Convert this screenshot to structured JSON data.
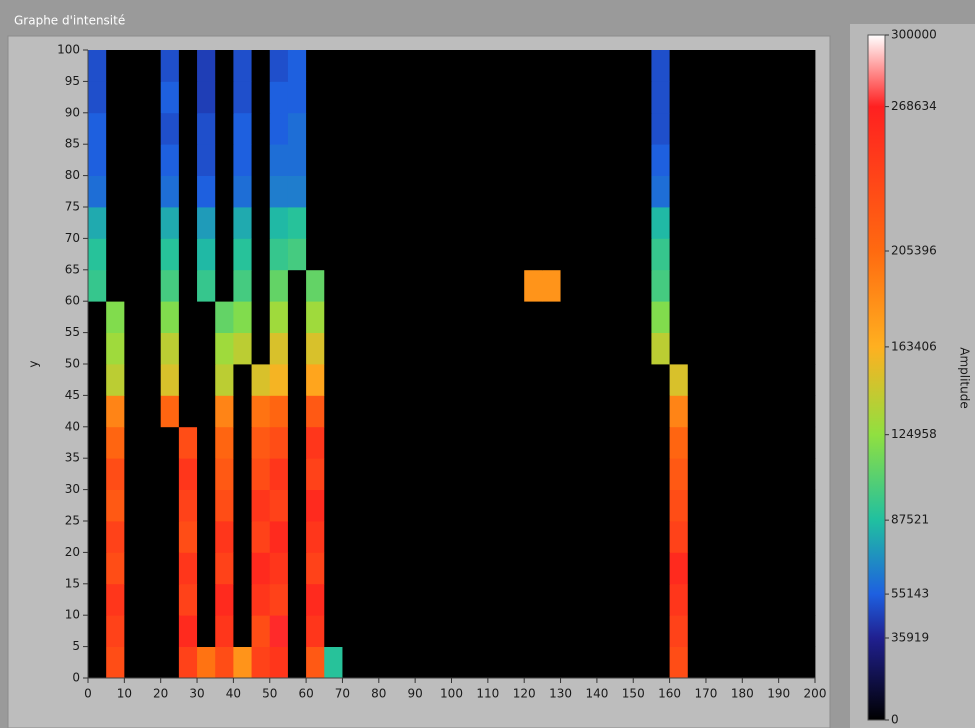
{
  "chart_data": {
    "type": "heatmap",
    "title": "Graphe d'intensité",
    "y_label": "y",
    "z_label": "Amplitude",
    "xlim": [
      0,
      200
    ],
    "ylim": [
      0,
      100
    ],
    "xticks": [
      0,
      10,
      20,
      30,
      40,
      50,
      60,
      70,
      80,
      90,
      100,
      110,
      120,
      130,
      140,
      150,
      160,
      170,
      180,
      190,
      200
    ],
    "yticks": [
      0,
      5,
      10,
      15,
      20,
      25,
      30,
      35,
      40,
      45,
      50,
      55,
      60,
      65,
      70,
      75,
      80,
      85,
      90,
      95,
      100
    ],
    "zlim": [
      0,
      300000
    ],
    "zticks": [
      0,
      35919,
      55143,
      87521,
      124958,
      163406,
      205396,
      268634,
      300000
    ],
    "colormap": [
      "#000000",
      "#202090",
      "#1e60e0",
      "#20c0a0",
      "#90e040",
      "#ffb020",
      "#ff6a10",
      "#ff2020",
      "#ffffff"
    ],
    "z": [
      [
        0,
        230000,
        0,
        0,
        0,
        240000,
        200000,
        230000,
        180000,
        240000,
        250000,
        0,
        220000,
        90000,
        0,
        0,
        0,
        0,
        0,
        0,
        0,
        0,
        0,
        0,
        0,
        0,
        0,
        0,
        0,
        0,
        0,
        0,
        230000,
        0,
        0,
        0,
        0,
        0,
        0,
        0
      ],
      [
        0,
        240000,
        0,
        0,
        0,
        260000,
        0,
        250000,
        0,
        230000,
        270000,
        0,
        250000,
        0,
        0,
        0,
        0,
        0,
        0,
        0,
        0,
        0,
        0,
        0,
        0,
        0,
        0,
        0,
        0,
        0,
        0,
        0,
        240000,
        0,
        0,
        0,
        0,
        0,
        0,
        0
      ],
      [
        0,
        250000,
        0,
        0,
        0,
        240000,
        0,
        260000,
        0,
        250000,
        240000,
        0,
        260000,
        0,
        0,
        0,
        0,
        0,
        0,
        0,
        0,
        0,
        0,
        0,
        0,
        0,
        0,
        0,
        0,
        0,
        0,
        0,
        250000,
        0,
        0,
        0,
        0,
        0,
        0,
        0
      ],
      [
        0,
        230000,
        0,
        0,
        0,
        250000,
        0,
        240000,
        0,
        260000,
        250000,
        0,
        240000,
        0,
        0,
        0,
        0,
        0,
        0,
        0,
        0,
        0,
        0,
        0,
        0,
        0,
        0,
        0,
        0,
        0,
        0,
        0,
        260000,
        0,
        0,
        0,
        0,
        0,
        0,
        0
      ],
      [
        0,
        240000,
        0,
        0,
        0,
        230000,
        0,
        250000,
        0,
        240000,
        260000,
        0,
        250000,
        0,
        0,
        0,
        0,
        0,
        0,
        0,
        0,
        0,
        0,
        0,
        0,
        0,
        0,
        0,
        0,
        0,
        0,
        0,
        240000,
        0,
        0,
        0,
        0,
        0,
        0,
        0
      ],
      [
        0,
        220000,
        0,
        0,
        0,
        240000,
        0,
        230000,
        0,
        250000,
        240000,
        0,
        260000,
        0,
        0,
        0,
        0,
        0,
        0,
        0,
        0,
        0,
        0,
        0,
        0,
        0,
        0,
        0,
        0,
        0,
        0,
        0,
        230000,
        0,
        0,
        0,
        0,
        0,
        0,
        0
      ],
      [
        0,
        230000,
        0,
        0,
        0,
        250000,
        0,
        220000,
        0,
        230000,
        250000,
        0,
        240000,
        0,
        0,
        0,
        0,
        0,
        0,
        0,
        0,
        0,
        0,
        0,
        0,
        0,
        0,
        0,
        0,
        0,
        0,
        0,
        220000,
        0,
        0,
        0,
        0,
        0,
        0,
        0
      ],
      [
        0,
        210000,
        0,
        0,
        0,
        230000,
        0,
        210000,
        0,
        220000,
        230000,
        0,
        250000,
        0,
        0,
        0,
        0,
        0,
        0,
        0,
        0,
        0,
        0,
        0,
        0,
        0,
        0,
        0,
        0,
        0,
        0,
        0,
        210000,
        0,
        0,
        0,
        0,
        0,
        0,
        0
      ],
      [
        0,
        190000,
        0,
        0,
        210000,
        0,
        0,
        190000,
        0,
        200000,
        210000,
        0,
        220000,
        0,
        0,
        0,
        0,
        0,
        0,
        0,
        0,
        0,
        0,
        0,
        0,
        0,
        0,
        0,
        0,
        0,
        0,
        0,
        190000,
        0,
        0,
        0,
        0,
        0,
        0,
        0
      ],
      [
        0,
        140000,
        0,
        0,
        150000,
        0,
        0,
        140000,
        0,
        150000,
        160000,
        0,
        170000,
        0,
        0,
        0,
        0,
        0,
        0,
        0,
        0,
        0,
        0,
        0,
        0,
        0,
        0,
        0,
        0,
        0,
        0,
        0,
        150000,
        0,
        0,
        0,
        0,
        0,
        0,
        0
      ],
      [
        0,
        130000,
        0,
        0,
        140000,
        0,
        0,
        130000,
        140000,
        0,
        150000,
        0,
        150000,
        0,
        0,
        0,
        0,
        0,
        0,
        0,
        0,
        0,
        0,
        0,
        0,
        0,
        0,
        0,
        0,
        0,
        0,
        140000,
        0,
        0,
        0,
        0,
        0,
        0,
        0,
        0
      ],
      [
        0,
        120000,
        0,
        0,
        120000,
        0,
        0,
        110000,
        120000,
        0,
        130000,
        0,
        130000,
        0,
        0,
        0,
        0,
        0,
        0,
        0,
        0,
        0,
        0,
        0,
        0,
        0,
        0,
        0,
        0,
        0,
        0,
        120000,
        0,
        0,
        0,
        0,
        0,
        0,
        0,
        0
      ],
      [
        95000,
        0,
        0,
        0,
        100000,
        0,
        95000,
        0,
        100000,
        0,
        110000,
        0,
        110000,
        0,
        0,
        0,
        0,
        0,
        0,
        0,
        0,
        0,
        0,
        0,
        180000,
        180000,
        0,
        0,
        0,
        0,
        0,
        100000,
        0,
        0,
        0,
        0,
        0,
        0,
        0,
        0
      ],
      [
        90000,
        0,
        0,
        0,
        90000,
        0,
        85000,
        0,
        90000,
        0,
        95000,
        100000,
        0,
        0,
        0,
        0,
        0,
        0,
        0,
        0,
        0,
        0,
        0,
        0,
        0,
        0,
        0,
        0,
        0,
        0,
        0,
        95000,
        0,
        0,
        0,
        0,
        0,
        0,
        0,
        0
      ],
      [
        80000,
        0,
        0,
        0,
        80000,
        0,
        75000,
        0,
        80000,
        0,
        85000,
        90000,
        0,
        0,
        0,
        0,
        0,
        0,
        0,
        0,
        0,
        0,
        0,
        0,
        0,
        0,
        0,
        0,
        0,
        0,
        0,
        85000,
        0,
        0,
        0,
        0,
        0,
        0,
        0,
        0
      ],
      [
        60000,
        0,
        0,
        0,
        60000,
        0,
        55000,
        0,
        60000,
        0,
        65000,
        65000,
        0,
        0,
        0,
        0,
        0,
        0,
        0,
        0,
        0,
        0,
        0,
        0,
        0,
        0,
        0,
        0,
        0,
        0,
        0,
        60000,
        0,
        0,
        0,
        0,
        0,
        0,
        0,
        0
      ],
      [
        55000,
        0,
        0,
        0,
        55000,
        0,
        50000,
        0,
        55000,
        0,
        60000,
        60000,
        0,
        0,
        0,
        0,
        0,
        0,
        0,
        0,
        0,
        0,
        0,
        0,
        0,
        0,
        0,
        0,
        0,
        0,
        0,
        55000,
        0,
        0,
        0,
        0,
        0,
        0,
        0,
        0
      ],
      [
        55000,
        0,
        0,
        0,
        50000,
        0,
        50000,
        0,
        55000,
        0,
        55000,
        60000,
        0,
        0,
        0,
        0,
        0,
        0,
        0,
        0,
        0,
        0,
        0,
        0,
        0,
        0,
        0,
        0,
        0,
        0,
        0,
        50000,
        0,
        0,
        0,
        0,
        0,
        0,
        0,
        0
      ],
      [
        50000,
        0,
        0,
        0,
        55000,
        0,
        45000,
        0,
        50000,
        0,
        55000,
        55000,
        0,
        0,
        0,
        0,
        0,
        0,
        0,
        0,
        0,
        0,
        0,
        0,
        0,
        0,
        0,
        0,
        0,
        0,
        0,
        50000,
        0,
        0,
        0,
        0,
        0,
        0,
        0,
        0
      ],
      [
        50000,
        0,
        0,
        0,
        50000,
        0,
        45000,
        0,
        50000,
        0,
        50000,
        55000,
        0,
        0,
        0,
        0,
        0,
        0,
        0,
        0,
        0,
        0,
        0,
        0,
        0,
        0,
        0,
        0,
        0,
        0,
        0,
        50000,
        0,
        0,
        0,
        0,
        0,
        0,
        0,
        0
      ]
    ]
  }
}
